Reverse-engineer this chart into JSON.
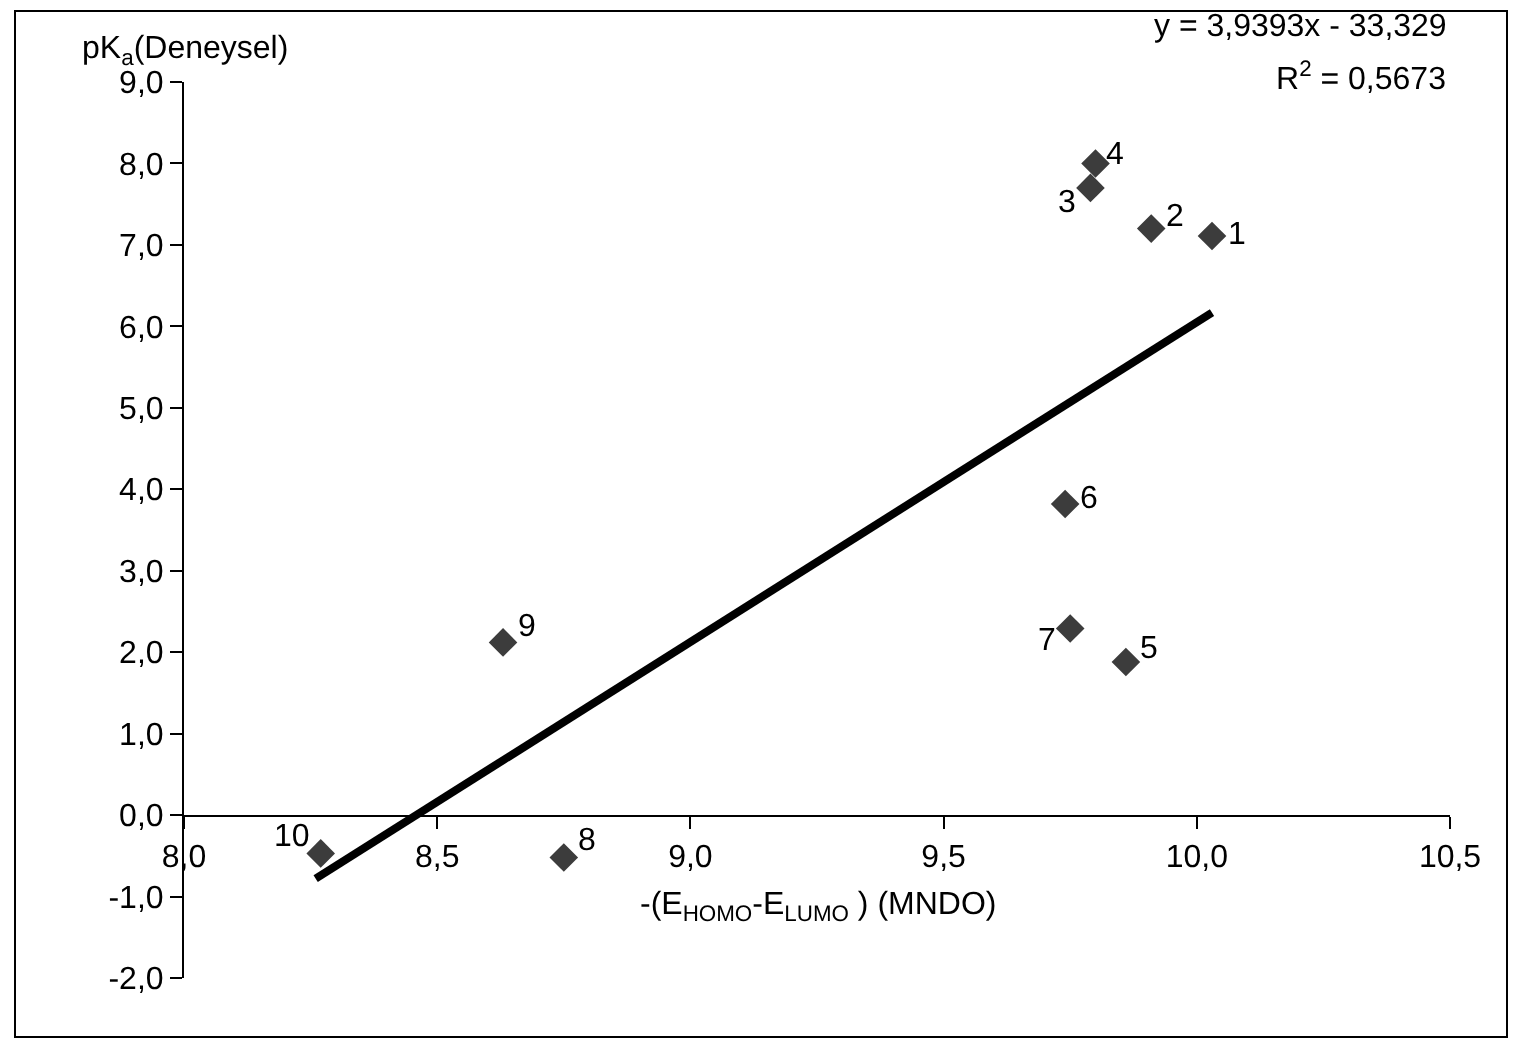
{
  "chart_data": {
    "type": "scatter",
    "xlabel": "-(E$_{HOMO}$-E$_{LUMO}$ ) (MNDO)",
    "ylabel": "pK$_{a}$(Deneysel)",
    "xlim": [
      8,
      10.5
    ],
    "ylim": [
      -2,
      9
    ],
    "xticks": [
      {
        "value": 8,
        "label": "8,0"
      },
      {
        "value": 8.5,
        "label": "8,5"
      },
      {
        "value": 9,
        "label": "9,0"
      },
      {
        "value": 9.5,
        "label": "9,5"
      },
      {
        "value": 10,
        "label": "10,0"
      },
      {
        "value": 10.5,
        "label": "10,5"
      }
    ],
    "yticks": [
      {
        "value": -2,
        "label": "-2,0"
      },
      {
        "value": -1,
        "label": "-1,0"
      },
      {
        "value": 0,
        "label": "0,0"
      },
      {
        "value": 1,
        "label": "1,0"
      },
      {
        "value": 2,
        "label": "2,0"
      },
      {
        "value": 3,
        "label": "3,0"
      },
      {
        "value": 4,
        "label": "4,0"
      },
      {
        "value": 5,
        "label": "5,0"
      },
      {
        "value": 6,
        "label": "6,0"
      },
      {
        "value": 7,
        "label": "7,0"
      },
      {
        "value": 8,
        "label": "8,0"
      },
      {
        "value": 9,
        "label": "9,0"
      }
    ],
    "grid": false,
    "marker": "diamond",
    "series": [
      {
        "type": "scatter",
        "color": "#3c3c3c",
        "x": [
          10.03,
          9.91,
          9.79,
          9.8,
          9.86,
          9.74,
          9.75,
          8.75,
          8.63,
          8.27
        ],
        "values": [
          7.11,
          7.2,
          7.7,
          8.0,
          1.88,
          3.82,
          2.29,
          -0.52,
          2.12,
          -0.47
        ]
      },
      {
        "type": "line",
        "color": "#000000",
        "marker": "none",
        "line_style": "solid",
        "x": [
          8.26,
          10.03
        ],
        "values": [
          -0.78,
          6.17
        ]
      }
    ],
    "annotations": [
      "y = 3,9393x - 33,329",
      "R$^{2}$ = 0,5673",
      {
        "text": "1",
        "x": 10.03,
        "y": 7.11
      },
      {
        "text": "2",
        "x": 9.91,
        "y": 7.2
      },
      {
        "text": "3",
        "x": 9.79,
        "y": 7.7
      },
      {
        "text": "4",
        "x": 9.8,
        "y": 8.0
      },
      {
        "text": "5",
        "x": 9.86,
        "y": 1.88
      },
      {
        "text": "6",
        "x": 9.74,
        "y": 3.82
      },
      {
        "text": "7",
        "x": 9.75,
        "y": 2.29
      },
      {
        "text": "8",
        "x": 8.75,
        "y": -0.52
      },
      {
        "text": "9",
        "x": 8.63,
        "y": 2.12
      },
      {
        "text": "10",
        "x": 8.27,
        "y": -0.47
      }
    ]
  }
}
